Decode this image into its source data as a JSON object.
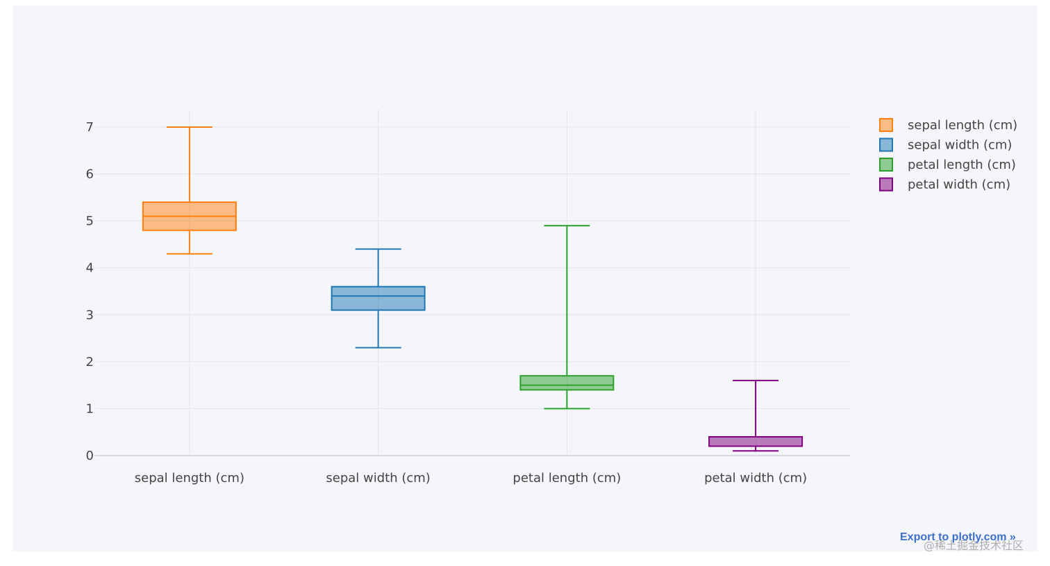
{
  "chart_data": {
    "type": "box",
    "categories": [
      "sepal length (cm)",
      "sepal width (cm)",
      "petal length (cm)",
      "petal width (cm)"
    ],
    "series": [
      {
        "name": "sepal length (cm)",
        "min": 4.3,
        "q1": 4.8,
        "median": 5.1,
        "q3": 5.4,
        "max": 7.0,
        "color": "#ff7f0e"
      },
      {
        "name": "sepal width (cm)",
        "min": 2.3,
        "q1": 3.1,
        "median": 3.4,
        "q3": 3.6,
        "max": 4.4,
        "color": "#1f77b4"
      },
      {
        "name": "petal length (cm)",
        "min": 1.0,
        "q1": 1.4,
        "median": 1.5,
        "q3": 1.7,
        "max": 4.9,
        "color": "#2ca02c"
      },
      {
        "name": "petal width (cm)",
        "min": 0.1,
        "q1": 0.2,
        "median": 0.2,
        "q3": 0.4,
        "max": 1.6,
        "color": "#800080"
      }
    ],
    "y_ticks": [
      0,
      1,
      2,
      3,
      4,
      5,
      6,
      7
    ],
    "ylim": [
      0,
      7.37
    ],
    "grid": true,
    "legend_position": "top-right"
  },
  "export_link": "Export to plotly.com »",
  "watermark": "@稀土掘金技术社区"
}
